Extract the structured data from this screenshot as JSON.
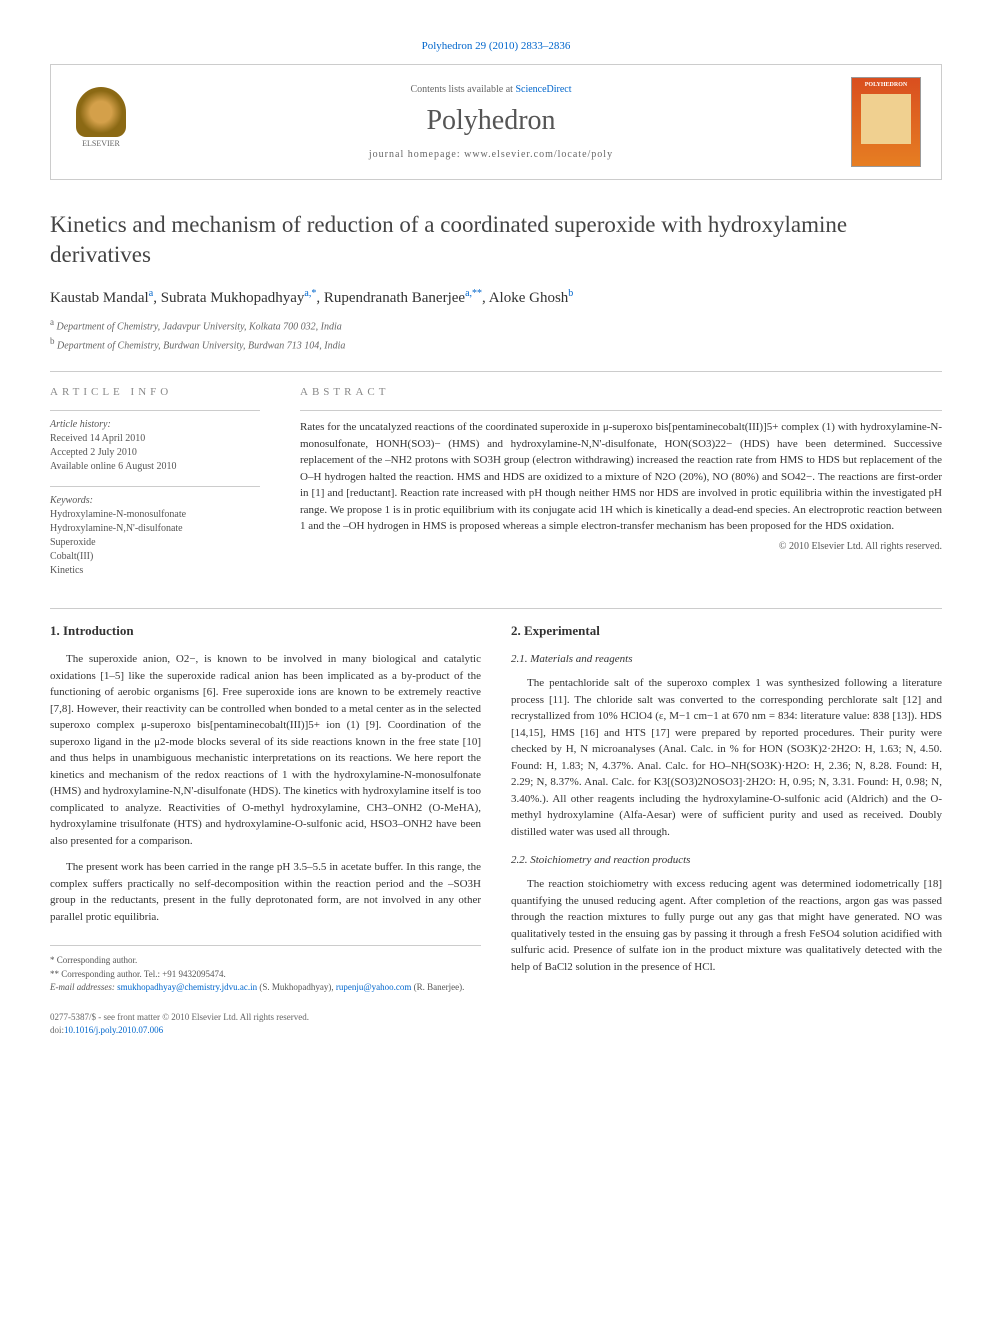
{
  "citation": {
    "prefix": "Polyhedron 29 (2010) 2833–2836"
  },
  "header": {
    "contents_prefix": "Contents lists available at ",
    "contents_link": "ScienceDirect",
    "journal": "Polyhedron",
    "homepage": "journal homepage: www.elsevier.com/locate/poly",
    "elsevier": "ELSEVIER",
    "cover_title": "POLYHEDRON"
  },
  "title": "Kinetics and mechanism of reduction of a coordinated superoxide with hydroxylamine derivatives",
  "authors": [
    {
      "name": "Kaustab Mandal",
      "sup": "a"
    },
    {
      "name": "Subrata Mukhopadhyay",
      "sup": "a,*"
    },
    {
      "name": "Rupendranath Banerjee",
      "sup": "a,**"
    },
    {
      "name": "Aloke Ghosh",
      "sup": "b"
    }
  ],
  "affiliations": [
    {
      "sup": "a",
      "text": "Department of Chemistry, Jadavpur University, Kolkata 700 032, India"
    },
    {
      "sup": "b",
      "text": "Department of Chemistry, Burdwan University, Burdwan 713 104, India"
    }
  ],
  "article_info": {
    "label": "article info",
    "history_heading": "Article history:",
    "history": "Received 14 April 2010\nAccepted 2 July 2010\nAvailable online 6 August 2010",
    "keywords_heading": "Keywords:",
    "keywords": "Hydroxylamine-N-monosulfonate\nHydroxylamine-N,N'-disulfonate\nSuperoxide\nCobalt(III)\nKinetics"
  },
  "abstract": {
    "label": "abstract",
    "text": "Rates for the uncatalyzed reactions of the coordinated superoxide in μ-superoxo bis[pentaminecobalt(III)]5+ complex (1) with hydroxylamine-N-monosulfonate, HONH(SO3)− (HMS) and hydroxylamine-N,N'-disulfonate, HON(SO3)22− (HDS) have been determined. Successive replacement of the –NH2 protons with SO3H group (electron withdrawing) increased the reaction rate from HMS to HDS but replacement of the O–H hydrogen halted the reaction. HMS and HDS are oxidized to a mixture of N2O (20%), NO (80%) and SO42−. The reactions are first-order in [1] and [reductant]. Reaction rate increased with pH though neither HMS nor HDS are involved in protic equilibria within the investigated pH range. We propose 1 is in protic equilibrium with its conjugate acid 1H which is kinetically a dead-end species. An electroprotic reaction between 1 and the –OH hydrogen in HMS is proposed whereas a simple electron-transfer mechanism has been proposed for the HDS oxidation.",
    "copyright": "© 2010 Elsevier Ltd. All rights reserved."
  },
  "sections": {
    "intro_heading": "1. Introduction",
    "intro_p1": "The superoxide anion, O2−, is known to be involved in many biological and catalytic oxidations [1–5] like the superoxide radical anion has been implicated as a by-product of the functioning of aerobic organisms [6]. Free superoxide ions are known to be extremely reactive [7,8]. However, their reactivity can be controlled when bonded to a metal center as in the selected superoxo complex μ-superoxo bis[pentaminecobalt(III)]5+ ion (1) [9]. Coordination of the superoxo ligand in the μ2-mode blocks several of its side reactions known in the free state [10] and thus helps in unambiguous mechanistic interpretations on its reactions. We here report the kinetics and mechanism of the redox reactions of 1 with the hydroxylamine-N-monosulfonate (HMS) and hydroxylamine-N,N'-disulfonate (HDS). The kinetics with hydroxylamine itself is too complicated to analyze. Reactivities of O-methyl hydroxylamine, CH3–ONH2 (O-MeHA), hydroxylamine trisulfonate (HTS) and hydroxylamine-O-sulfonic acid, HSO3–ONH2 have been also presented for a comparison.",
    "intro_p2": "The present work has been carried in the range pH 3.5–5.5 in acetate buffer. In this range, the complex suffers practically no self-decomposition within the reaction period and the –SO3H group in the reductants, present in the fully deprotonated form, are not involved in any other parallel protic equilibria.",
    "exp_heading": "2. Experimental",
    "exp_sub1": "2.1. Materials and reagents",
    "exp_p1": "The pentachloride salt of the superoxo complex 1 was synthesized following a literature process [11]. The chloride salt was converted to the corresponding perchlorate salt [12] and recrystallized from 10% HClO4 (ε, M−1 cm−1 at 670 nm = 834: literature value: 838 [13]). HDS [14,15], HMS [16] and HTS [17] were prepared by reported procedures. Their purity were checked by H, N microanalyses (Anal. Calc. in % for HON (SO3K)2·2H2O: H, 1.63; N, 4.50. Found: H, 1.83; N, 4.37%. Anal. Calc. for HO–NH(SO3K)·H2O: H, 2.36; N, 8.28. Found: H, 2.29; N, 8.37%. Anal. Calc. for K3[(SO3)2NOSO3]·2H2O: H, 0.95; N, 3.31. Found: H, 0.98; N, 3.40%.). All other reagents including the hydroxylamine-O-sulfonic acid (Aldrich) and the O-methyl hydroxylamine (Alfa-Aesar) were of sufficient purity and used as received. Doubly distilled water was used all through.",
    "exp_sub2": "2.2. Stoichiometry and reaction products",
    "exp_p2": "The reaction stoichiometry with excess reducing agent was determined iodometrically [18] quantifying the unused reducing agent. After completion of the reactions, argon gas was passed through the reaction mixtures to fully purge out any gas that might have generated. NO was qualitatively tested in the ensuing gas by passing it through a fresh FeSO4 solution acidified with sulfuric acid. Presence of sulfate ion in the product mixture was qualitatively detected with the help of BaCl2 solution in the presence of HCl."
  },
  "footnotes": {
    "corr1": "* Corresponding author.",
    "corr2": "** Corresponding author. Tel.: +91 9432095474.",
    "email_label": "E-mail addresses: ",
    "email1": "smukhopadhyay@chemistry.jdvu.ac.in",
    "email1_name": " (S. Mukhopadhyay), ",
    "email2": "rupenju@yahoo.com",
    "email2_name": " (R. Banerjee)."
  },
  "footer": {
    "issn": "0277-5387/$ - see front matter © 2010 Elsevier Ltd. All rights reserved.",
    "doi_label": "doi:",
    "doi": "10.1016/j.poly.2010.07.006"
  },
  "colors": {
    "link": "#0066cc",
    "text": "#333333",
    "muted": "#666666",
    "border": "#cccccc"
  }
}
